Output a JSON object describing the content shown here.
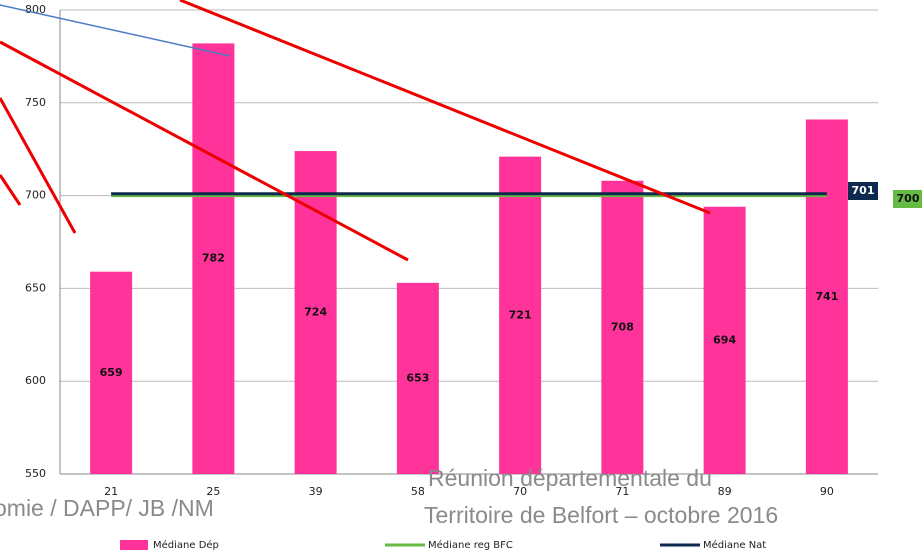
{
  "chart_data": {
    "type": "bar",
    "categories": [
      "21",
      "25",
      "39",
      "58",
      "70",
      "71",
      "89",
      "90"
    ],
    "series": [
      {
        "name": "Médiane Dép",
        "type": "bar",
        "color": "#ff3399",
        "values": [
          659,
          782,
          724,
          653,
          721,
          708,
          694,
          741
        ]
      },
      {
        "name": "Médiane reg BFC",
        "type": "line",
        "color": "#66bb44",
        "values": [
          700,
          700,
          700,
          700,
          700,
          700,
          700,
          700
        ]
      },
      {
        "name": "Médiane Nat",
        "type": "line",
        "color": "#0d2a4e",
        "values": [
          701,
          701,
          701,
          701,
          701,
          701,
          701,
          701
        ]
      }
    ],
    "ylim": [
      550,
      800
    ],
    "yticks": [
      550,
      600,
      650,
      700,
      750,
      800
    ],
    "grid": true
  },
  "footer": {
    "left": "omie / DAPP/ JB /NM",
    "right": [
      "Réunion départementale du",
      "Territoire de Belfort – octobre 2016"
    ]
  }
}
